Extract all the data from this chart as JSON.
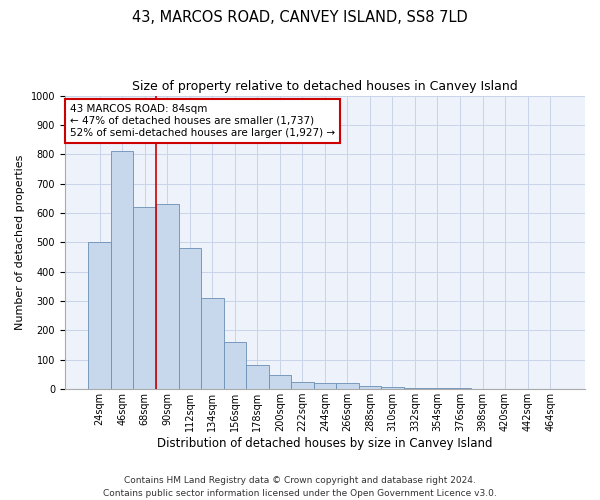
{
  "title": "43, MARCOS ROAD, CANVEY ISLAND, SS8 7LD",
  "subtitle": "Size of property relative to detached houses in Canvey Island",
  "xlabel": "Distribution of detached houses by size in Canvey Island",
  "ylabel": "Number of detached properties",
  "categories": [
    "24sqm",
    "46sqm",
    "68sqm",
    "90sqm",
    "112sqm",
    "134sqm",
    "156sqm",
    "178sqm",
    "200sqm",
    "222sqm",
    "244sqm",
    "266sqm",
    "288sqm",
    "310sqm",
    "332sqm",
    "354sqm",
    "376sqm",
    "398sqm",
    "420sqm",
    "442sqm",
    "464sqm"
  ],
  "values": [
    500,
    810,
    620,
    630,
    480,
    310,
    160,
    82,
    48,
    25,
    22,
    22,
    12,
    8,
    4,
    4,
    3,
    2,
    1,
    1,
    1
  ],
  "bar_color": "#c8d8ec",
  "bar_edge_color": "#6a8fb5",
  "highlight_line_index": 2.5,
  "annotation_line1": "43 MARCOS ROAD: 84sqm",
  "annotation_line2": "← 47% of detached houses are smaller (1,737)",
  "annotation_line3": "52% of semi-detached houses are larger (1,927) →",
  "annotation_box_color": "#ffffff",
  "annotation_box_edge": "#cc0000",
  "ylim_max": 1000,
  "yticks": [
    0,
    100,
    200,
    300,
    400,
    500,
    600,
    700,
    800,
    900,
    1000
  ],
  "grid_color": "#c8d4e8",
  "bg_color": "#edf2fb",
  "footer_line1": "Contains HM Land Registry data © Crown copyright and database right 2024.",
  "footer_line2": "Contains public sector information licensed under the Open Government Licence v3.0.",
  "title_fontsize": 10.5,
  "subtitle_fontsize": 9,
  "xlabel_fontsize": 8.5,
  "ylabel_fontsize": 8,
  "tick_fontsize": 7,
  "annotation_fontsize": 7.5,
  "footer_fontsize": 6.5
}
